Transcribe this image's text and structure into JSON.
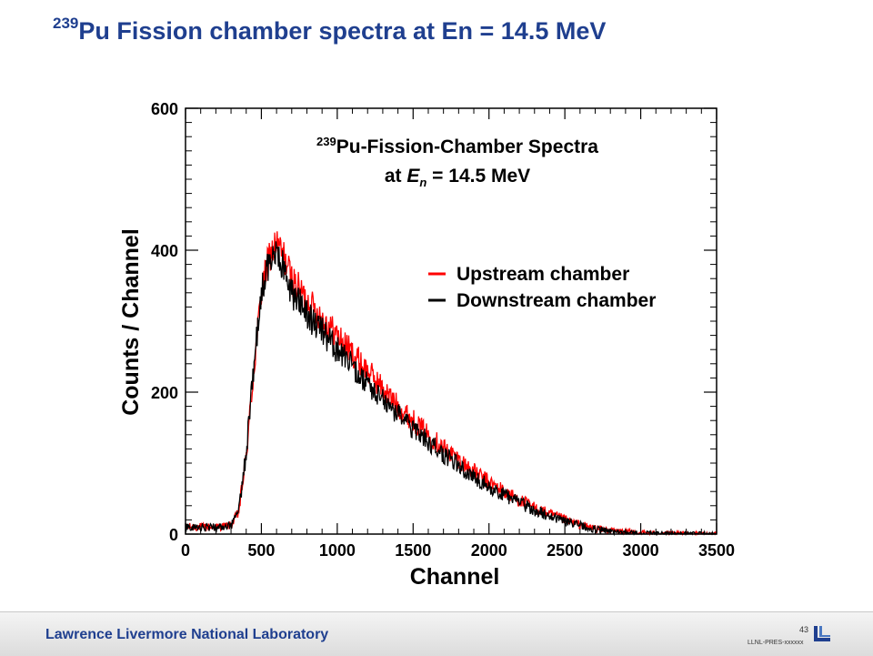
{
  "slide": {
    "title_sup": "239",
    "title_main": "Pu Fission chamber spectra at En = 14.5 MeV"
  },
  "footer": {
    "lab_name": "Lawrence Livermore National Laboratory",
    "page_number": "43",
    "doc_id": "LLNL-PRES-xxxxxx"
  },
  "colors": {
    "title": "#1f3f8f",
    "upstream": "#ff0000",
    "downstream": "#000000"
  },
  "chart_data": {
    "type": "line",
    "title_line1_sup": "239",
    "title_line1_main": "Pu-Fission-Chamber Spectra",
    "title_line2_prefix": "at ",
    "title_line2_var": "E",
    "title_line2_sub": "n",
    "title_line2_suffix": " = 14.5 MeV",
    "xlabel": "Channel",
    "ylabel": "Counts / Channel",
    "xlim": [
      0,
      3500
    ],
    "ylim": [
      0,
      600
    ],
    "xticks": [
      0,
      500,
      1000,
      1500,
      2000,
      2500,
      3000,
      3500
    ],
    "yticks": [
      0,
      200,
      400,
      600
    ],
    "grid": false,
    "legend_position": "center-right",
    "series": [
      {
        "name": "Upstream chamber",
        "color": "#ff0000",
        "x": [
          0,
          100,
          200,
          300,
          350,
          400,
          450,
          500,
          550,
          600,
          650,
          700,
          750,
          800,
          900,
          1000,
          1100,
          1200,
          1300,
          1400,
          1500,
          1600,
          1700,
          1800,
          1900,
          2000,
          2100,
          2200,
          2300,
          2400,
          2500,
          2600,
          2700,
          2800,
          2900,
          3000,
          3100,
          3200,
          3300,
          3400,
          3500
        ],
        "values": [
          10,
          10,
          10,
          12,
          30,
          110,
          230,
          340,
          390,
          410,
          390,
          360,
          345,
          330,
          305,
          280,
          255,
          230,
          205,
          180,
          160,
          140,
          122,
          105,
          88,
          73,
          60,
          48,
          37,
          28,
          20,
          13,
          8,
          5,
          3,
          2,
          1,
          1,
          0,
          0,
          0
        ]
      },
      {
        "name": "Downstream chamber",
        "color": "#000000",
        "x": [
          0,
          100,
          200,
          300,
          350,
          400,
          450,
          500,
          550,
          600,
          650,
          700,
          750,
          800,
          900,
          1000,
          1100,
          1200,
          1300,
          1400,
          1500,
          1600,
          1700,
          1800,
          1900,
          2000,
          2100,
          2200,
          2300,
          2400,
          2500,
          2600,
          2700,
          2800,
          2900,
          3000,
          3100,
          3200,
          3300,
          3400,
          3500
        ],
        "values": [
          10,
          10,
          10,
          12,
          32,
          115,
          235,
          345,
          385,
          395,
          375,
          340,
          325,
          310,
          285,
          260,
          235,
          212,
          190,
          168,
          148,
          130,
          112,
          96,
          81,
          67,
          55,
          44,
          34,
          25,
          18,
          12,
          7,
          4,
          2,
          1,
          1,
          0,
          0,
          0,
          0
        ]
      }
    ]
  }
}
